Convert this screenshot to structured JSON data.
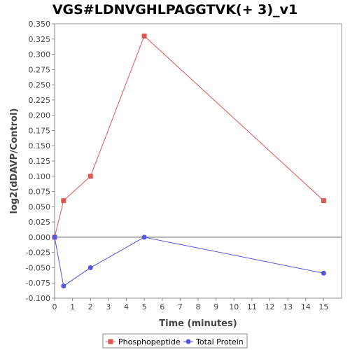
{
  "chart_data": {
    "type": "line",
    "title": "VGS#LDNVGHLPAGGTVK(+ 3)_v1",
    "xlabel": "Time (minutes)",
    "ylabel": "log2(dDAVP/Control)",
    "xlim": [
      0,
      16
    ],
    "ylim": [
      -0.1,
      0.35
    ],
    "x_ticks": [
      0,
      1,
      2,
      3,
      4,
      5,
      6,
      7,
      8,
      9,
      10,
      11,
      12,
      13,
      14,
      15
    ],
    "y_ticks": [
      -0.1,
      -0.075,
      -0.05,
      -0.025,
      0.0,
      0.025,
      0.05,
      0.075,
      0.1,
      0.125,
      0.15,
      0.175,
      0.2,
      0.225,
      0.25,
      0.275,
      0.3,
      0.325,
      0.35
    ],
    "y_tick_labels": [
      "-0.100",
      "-0.075",
      "-0.050",
      "-0.025",
      "0.000",
      "0.025",
      "0.050",
      "0.075",
      "0.100",
      "0.125",
      "0.150",
      "0.175",
      "0.200",
      "0.225",
      "0.250",
      "0.275",
      "0.300",
      "0.325",
      "0.350"
    ],
    "zero_line": true,
    "grid": false,
    "legend_position": "bottom",
    "series": [
      {
        "name": "Phosphopeptide",
        "color": "#e05555",
        "marker": "square",
        "x": [
          0,
          0.5,
          2,
          5,
          15
        ],
        "y": [
          0.0,
          0.06,
          0.1,
          0.33,
          0.06
        ]
      },
      {
        "name": "Total Protein",
        "color": "#5555e0",
        "marker": "circle",
        "x": [
          0,
          0.5,
          2,
          5,
          15
        ],
        "y": [
          0.0,
          -0.08,
          -0.05,
          0.0,
          -0.059
        ]
      }
    ]
  }
}
